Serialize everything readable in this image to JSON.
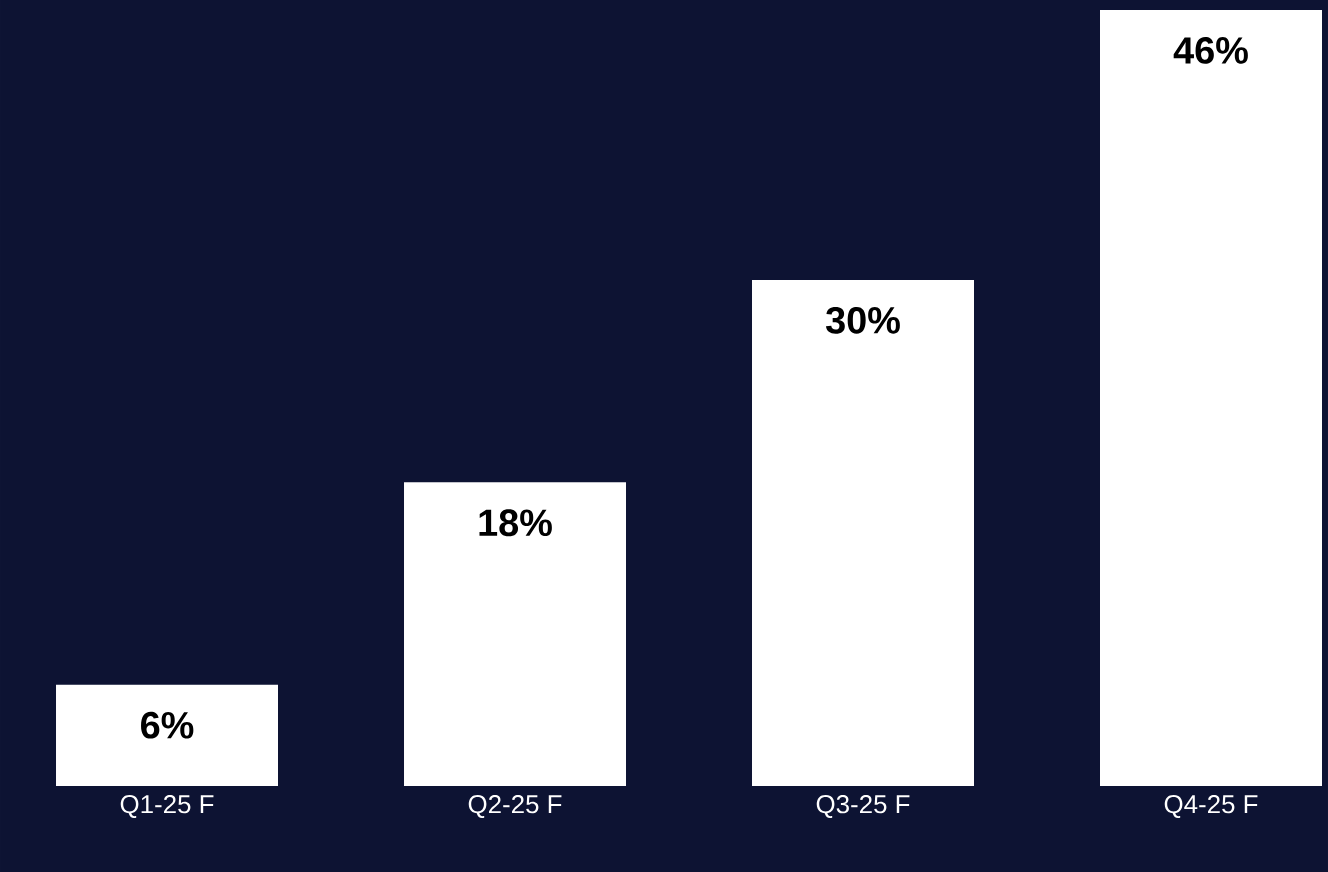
{
  "chart_data": {
    "type": "bar",
    "categories": [
      "Q1-25 F",
      "Q2-25 F",
      "Q3-25 F",
      "Q4-25 F"
    ],
    "values": [
      6,
      18,
      30,
      46
    ],
    "color": "#ffffff",
    "value_labels": [
      "6%",
      "18%",
      "30%",
      "46%"
    ]
  }
}
